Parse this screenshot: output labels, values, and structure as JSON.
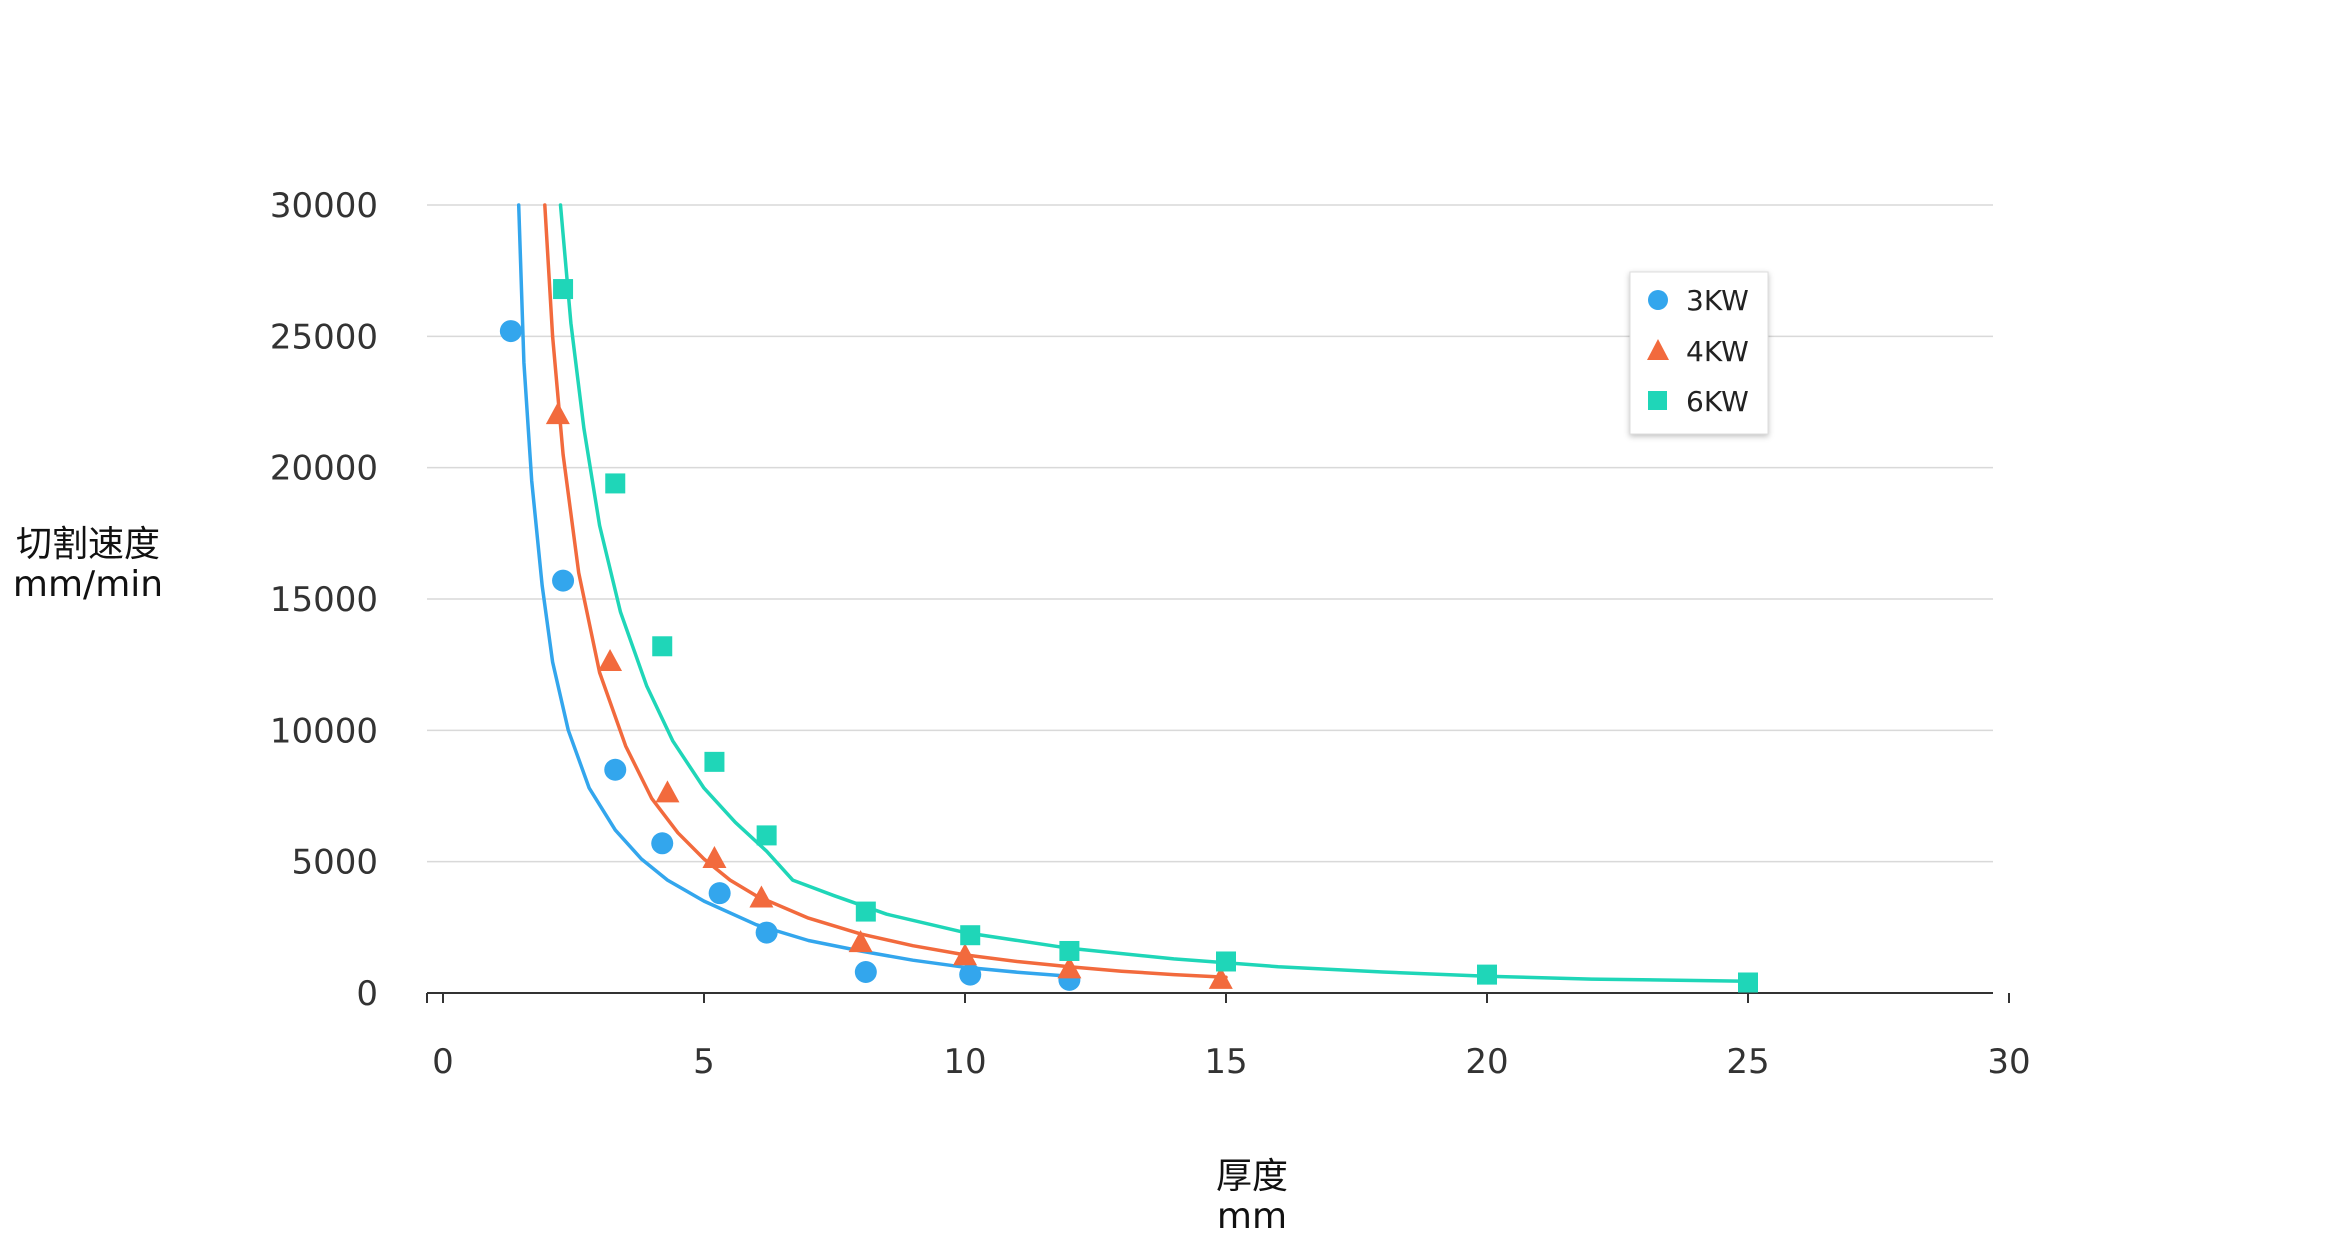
{
  "chart_data": {
    "type": "scatter",
    "xlabel": [
      "厚度",
      "mm"
    ],
    "ylabel": [
      "切割速度",
      "mm/min"
    ],
    "xlim": [
      0,
      30
    ],
    "ylim": [
      0,
      30000
    ],
    "x_ticks": [
      0,
      5,
      10,
      15,
      20,
      25,
      30
    ],
    "y_ticks": [
      0,
      5000,
      10000,
      15000,
      20000,
      25000,
      30000
    ],
    "grid": "horizontal",
    "legend_position": "top-right",
    "series": [
      {
        "name": "3KW",
        "marker": "circle",
        "color": "#33a6ed",
        "points": [
          [
            1.3,
            25200
          ],
          [
            2.3,
            15700
          ],
          [
            3.3,
            8500
          ],
          [
            4.2,
            5700
          ],
          [
            5.3,
            3800
          ],
          [
            6.2,
            2300
          ],
          [
            8.1,
            800
          ],
          [
            10.1,
            700
          ],
          [
            12.0,
            500
          ]
        ],
        "trend": [
          [
            1.45,
            30000
          ],
          [
            1.55,
            24000
          ],
          [
            1.7,
            19500
          ],
          [
            1.9,
            15500
          ],
          [
            2.1,
            12600
          ],
          [
            2.4,
            10000
          ],
          [
            2.8,
            7800
          ],
          [
            3.3,
            6200
          ],
          [
            3.8,
            5100
          ],
          [
            4.3,
            4300
          ],
          [
            5.0,
            3500
          ],
          [
            6.0,
            2600
          ],
          [
            7.0,
            2000
          ],
          [
            8.0,
            1600
          ],
          [
            9.0,
            1250
          ],
          [
            10.0,
            980
          ],
          [
            11.0,
            790
          ],
          [
            12.0,
            640
          ]
        ]
      },
      {
        "name": "4KW",
        "marker": "triangle",
        "color": "#f26a3d",
        "points": [
          [
            2.2,
            22000
          ],
          [
            3.2,
            12600
          ],
          [
            4.3,
            7600
          ],
          [
            5.2,
            5100
          ],
          [
            6.1,
            3600
          ],
          [
            8.0,
            1900
          ],
          [
            10.0,
            1400
          ],
          [
            12.0,
            900
          ],
          [
            14.9,
            500
          ]
        ],
        "trend": [
          [
            1.95,
            30000
          ],
          [
            2.1,
            25000
          ],
          [
            2.3,
            20500
          ],
          [
            2.6,
            16000
          ],
          [
            3.0,
            12200
          ],
          [
            3.5,
            9400
          ],
          [
            4.0,
            7400
          ],
          [
            4.5,
            6100
          ],
          [
            5.0,
            5100
          ],
          [
            5.5,
            4300
          ],
          [
            6.0,
            3700
          ],
          [
            7.0,
            2850
          ],
          [
            8.0,
            2250
          ],
          [
            9.0,
            1800
          ],
          [
            10.0,
            1450
          ],
          [
            11.0,
            1200
          ],
          [
            12.0,
            1000
          ],
          [
            13.0,
            830
          ],
          [
            14.0,
            700
          ],
          [
            15.0,
            600
          ]
        ]
      },
      {
        "name": "6KW",
        "marker": "square",
        "color": "#1fd6b8",
        "points": [
          [
            2.3,
            26800
          ],
          [
            3.3,
            19400
          ],
          [
            4.2,
            13200
          ],
          [
            5.2,
            8800
          ],
          [
            6.2,
            6000
          ],
          [
            8.1,
            3100
          ],
          [
            10.1,
            2200
          ],
          [
            12.0,
            1600
          ],
          [
            15.0,
            1200
          ],
          [
            20.0,
            700
          ],
          [
            25.0,
            400
          ]
        ],
        "trend": [
          [
            2.25,
            30000
          ],
          [
            2.45,
            25500
          ],
          [
            2.7,
            21500
          ],
          [
            3.0,
            17800
          ],
          [
            3.4,
            14500
          ],
          [
            3.9,
            11700
          ],
          [
            4.4,
            9600
          ],
          [
            5.0,
            7800
          ],
          [
            5.6,
            6500
          ],
          [
            6.2,
            5400
          ],
          [
            6.7,
            4300
          ],
          [
            7.5,
            3700
          ],
          [
            8.5,
            3000
          ],
          [
            10.0,
            2300
          ],
          [
            12.0,
            1700
          ],
          [
            14.0,
            1300
          ],
          [
            16.0,
            1000
          ],
          [
            18.0,
            800
          ],
          [
            20.0,
            640
          ],
          [
            22.0,
            530
          ],
          [
            25.0,
            450
          ]
        ]
      }
    ]
  }
}
